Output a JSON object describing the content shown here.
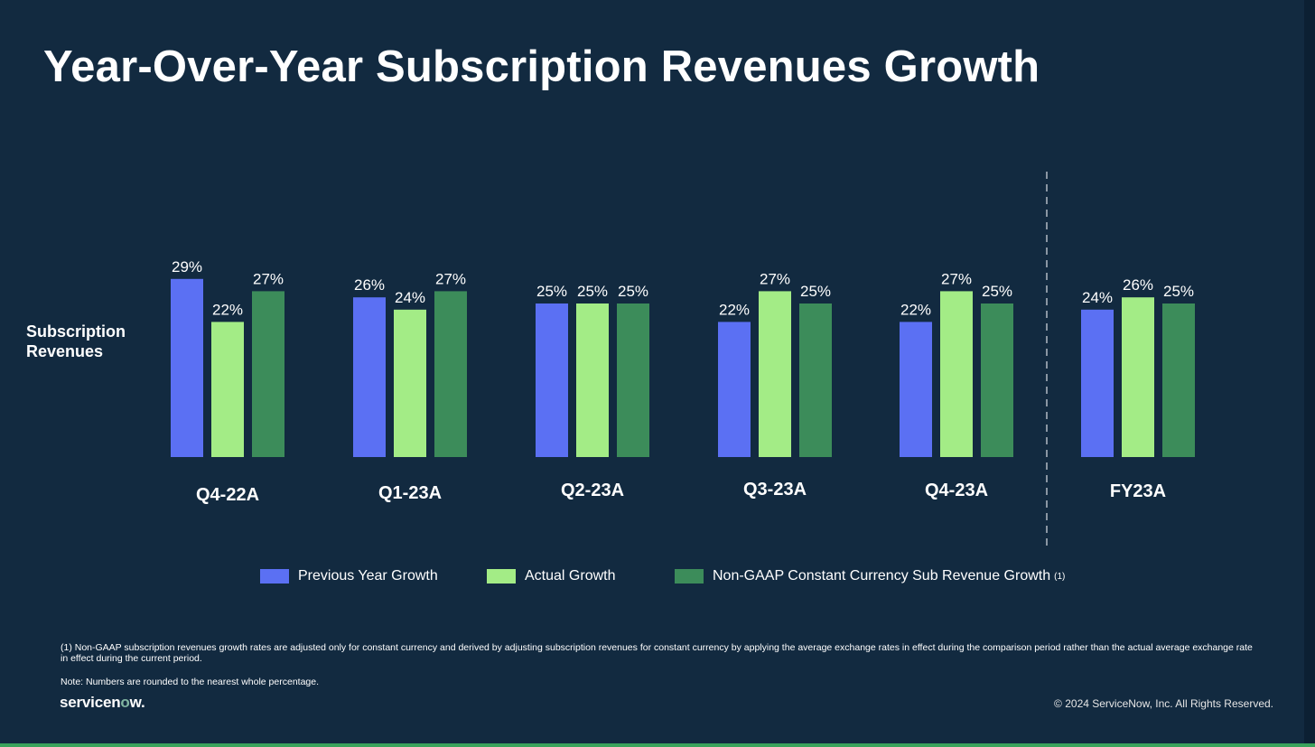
{
  "title": "Year-Over-Year Subscription Revenues Growth",
  "row_label": [
    "Subscription",
    "Revenues"
  ],
  "colors": {
    "background": "#122a40",
    "previous_year": "#5b70f3",
    "actual": "#a3ec86",
    "non_gaap": "#3c8c5a"
  },
  "legend": [
    {
      "label": "Previous Year Growth",
      "color": "#5b70f3",
      "sup": ""
    },
    {
      "label": "Actual Growth",
      "color": "#a3ec86",
      "sup": ""
    },
    {
      "label": "Non-GAAP Constant Currency Sub Revenue Growth",
      "color": "#3c8c5a",
      "sup": "(1)"
    }
  ],
  "chart_data": {
    "type": "bar",
    "title": "Year-Over-Year Subscription Revenues Growth",
    "ylabel": "Subscription Revenues",
    "categories": [
      "Q4-22A",
      "Q1-23A",
      "Q2-23A",
      "Q3-23A",
      "Q4-23A",
      "FY23A"
    ],
    "series": [
      {
        "name": "Previous Year Growth",
        "values": [
          29,
          26,
          25,
          22,
          22,
          24
        ],
        "labels": [
          "29%",
          "26%",
          "25%",
          "22%",
          "22%",
          "24%"
        ]
      },
      {
        "name": "Actual Growth",
        "values": [
          22,
          24,
          25,
          27,
          27,
          26
        ],
        "labels": [
          "22%",
          "24%",
          "25%",
          "27%",
          "27%",
          "26%"
        ]
      },
      {
        "name": "Non-GAAP Constant Currency Sub Revenue Growth",
        "values": [
          27,
          27,
          25,
          25,
          25,
          25
        ],
        "labels": [
          "27%",
          "27%",
          "25%",
          "25%",
          "25%",
          "25%"
        ]
      }
    ],
    "grid": false,
    "legend_position": "bottom",
    "separator_before": "FY23A"
  },
  "footnote": "(1) Non-GAAP subscription revenues growth rates are adjusted only for constant currency and derived by adjusting subscription revenues for constant currency by applying the average exchange rates in effect during the comparison period rather than the actual average exchange rate in effect during the current period.",
  "note": "Note: Numbers are rounded to the nearest whole percentage.",
  "logo": {
    "prefix": "servicen",
    "o": "o",
    "suffix": "w."
  },
  "copyright": "© 2024 ServiceNow, Inc. All Rights Reserved."
}
